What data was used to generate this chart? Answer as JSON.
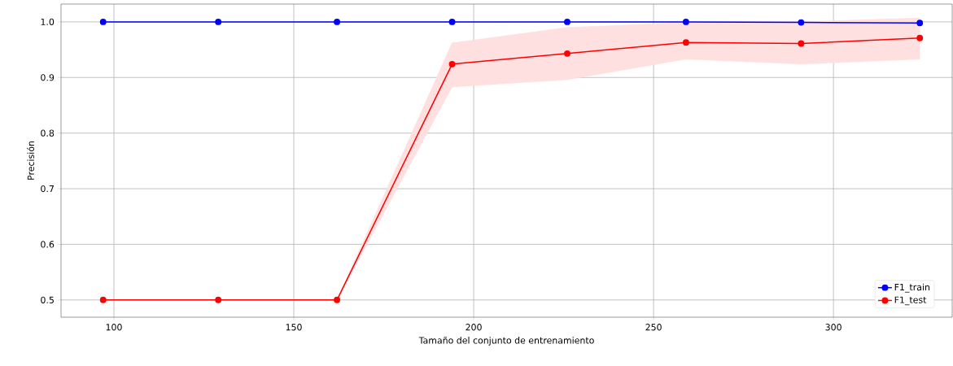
{
  "chart_data": {
    "type": "line",
    "xlabel": "Tamaño del conjunto de entrenamiento",
    "ylabel": "Precisión",
    "x": [
      97,
      129,
      162,
      194,
      226,
      259,
      291,
      324
    ],
    "series": [
      {
        "name": "F1_train",
        "color": "#0000ff",
        "values": [
          1.0,
          1.0,
          1.0,
          1.0,
          1.0,
          1.0,
          0.999,
          0.998
        ]
      },
      {
        "name": "F1_test",
        "color": "#ff0000",
        "values": [
          0.5,
          0.5,
          0.5,
          0.924,
          0.943,
          0.963,
          0.961,
          0.971
        ],
        "lower": [
          0.5,
          0.5,
          0.5,
          0.883,
          0.896,
          0.933,
          0.924,
          0.933
        ],
        "upper": [
          0.5,
          0.5,
          0.5,
          0.962,
          0.99,
          0.999,
          1.0,
          1.007
        ]
      }
    ],
    "xlim": [
      85.3,
      333
    ],
    "ylim": [
      0.469,
      1.032
    ],
    "xticks": [
      100,
      150,
      200,
      250,
      300
    ],
    "yticks": [
      {
        "value": 0.5,
        "label": "0.5"
      },
      {
        "value": 0.6,
        "label": "0.6"
      },
      {
        "value": 0.7,
        "label": "0.7"
      },
      {
        "value": 0.8,
        "label": "0.8"
      },
      {
        "value": 0.9,
        "label": "0.9"
      },
      {
        "value": 1.0,
        "label": "1.0"
      }
    ],
    "grid": true,
    "legend": "bottom right",
    "marker": "circle",
    "line_style": "solid"
  }
}
